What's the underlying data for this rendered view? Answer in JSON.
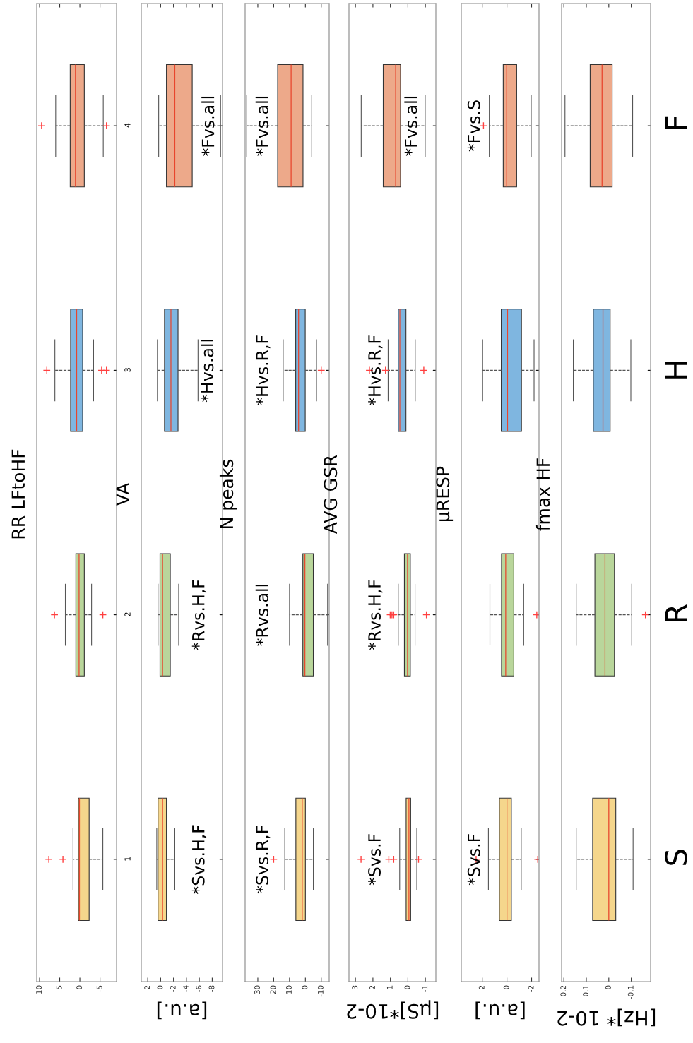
{
  "chart_data": [
    {
      "type": "box",
      "title": "RR LFtoHF",
      "orientation": "horizontal",
      "categories": [
        "4",
        "3",
        "2",
        "1"
      ],
      "colors": [
        "#eda98a",
        "#7fb6e0",
        "#b9d69b",
        "#f5d68c"
      ],
      "marker": "cross",
      "line_style": "dashed",
      "xlim": [
        10.7,
        -9.1
      ],
      "xticks": [
        10,
        5,
        0,
        -5
      ],
      "boxes": [
        {
          "low": -5.8,
          "q1": -1.1,
          "median": 1.1,
          "q3": 2.4,
          "high": 6.0,
          "outliers": [
            9.5,
            -6.6
          ]
        },
        {
          "low": -3.4,
          "q1": -0.7,
          "median": 0.8,
          "q3": 2.3,
          "high": 6.2,
          "outliers": [
            8.2,
            -5.4,
            -6.6
          ]
        },
        {
          "low": -2.9,
          "q1": -1.1,
          "median": 0.2,
          "q3": 1.0,
          "high": 3.6,
          "outliers": [
            6.3,
            -5.7
          ]
        },
        {
          "low": -5.7,
          "q1": -2.3,
          "median": 0.1,
          "q3": 0.35,
          "high": 1.7,
          "outliers": [
            7.7,
            4.2
          ]
        }
      ]
    },
    {
      "type": "box",
      "title": "VA",
      "xlabel": "[a.u.]",
      "orientation": "horizontal",
      "categories": [
        null,
        null,
        null,
        null
      ],
      "tick_labels": "x",
      "colors": [
        "#eda98a",
        "#7fb6e0",
        "#b9d69b",
        "#f5d68c"
      ],
      "marker": "cross",
      "line_style": "dashed",
      "xlim": [
        3.0,
        -9.6
      ],
      "xticks": [
        2,
        0,
        -2,
        -4,
        -6,
        -8
      ],
      "annotations": [
        "*Fvs.all",
        "*Hvs.all",
        "*Rvs.H,F",
        "*Svs.H,F"
      ],
      "boxes": [
        {
          "low": -9.3,
          "q1": -4.9,
          "median": -2.2,
          "q3": -0.9,
          "high": 0.3
        },
        {
          "low": -5.8,
          "q1": -2.7,
          "median": -1.6,
          "q3": -0.6,
          "high": 0.5
        },
        {
          "low": -2.8,
          "q1": -1.5,
          "median": -0.3,
          "q3": 0.1,
          "high": 0.4
        },
        {
          "low": -2.2,
          "q1": -0.9,
          "median": -0.3,
          "q3": 0.4,
          "high": 0.6
        }
      ]
    },
    {
      "type": "box",
      "title": "N peaks",
      "orientation": "horizontal",
      "categories": [
        null,
        null,
        null,
        null
      ],
      "tick_labels": "x",
      "colors": [
        "#eda98a",
        "#7fb6e0",
        "#b9d69b",
        "#f5d68c"
      ],
      "marker": "cross",
      "line_style": "dashed",
      "xlim": [
        38,
        -15
      ],
      "xticks": [
        30,
        20,
        10,
        0,
        -10
      ],
      "annotations": [
        "*Fvs.all",
        "*Hvs.R,F",
        "*Rvs.all",
        "*Svs.R,F"
      ],
      "boxes": [
        {
          "low": -4,
          "q1": 1.5,
          "median": 9,
          "q3": 17.5,
          "high": 37
        },
        {
          "low": -7,
          "q1": 0.1,
          "median": 4.3,
          "q3": 6.1,
          "high": 14,
          "outliers": [
            -10
          ]
        },
        {
          "low": -14,
          "q1": -5,
          "median": 0.3,
          "q3": 1.6,
          "high": 10
        },
        {
          "low": -5,
          "q1": 0,
          "median": 2,
          "q3": 6,
          "high": 13,
          "outliers": [
            20
          ]
        }
      ]
    },
    {
      "type": "box",
      "title": "AVG GSR",
      "xlabel": "[μS]*10-2",
      "orientation": "horizontal",
      "categories": [
        null,
        null,
        null,
        null
      ],
      "tick_labels": "x",
      "colors": [
        "#eda98a",
        "#7fb6e0",
        "#b9d69b",
        "#f5d68c"
      ],
      "marker": "cross",
      "line_style": "dashed",
      "xlim": [
        3.37,
        -1.6
      ],
      "xticks": [
        3,
        2,
        1,
        0,
        -1
      ],
      "annotations": [
        "*Fvs.all",
        "*Hvs.R,F",
        "*Rvs.H,F",
        "*Svs.F"
      ],
      "boxes": [
        {
          "low": -0.99,
          "q1": 0.42,
          "median": 0.7,
          "q3": 1.41,
          "high": 2.67
        },
        {
          "low": -0.42,
          "q1": 0.11,
          "median": 0.46,
          "q3": 0.55,
          "high": 1.13,
          "outliers": [
            2.2,
            1.28,
            -0.91
          ]
        },
        {
          "low": -0.41,
          "q1": -0.14,
          "median": 0.02,
          "q3": 0.2,
          "high": 0.55,
          "outliers": [
            1.01,
            0.91,
            0.81,
            -1.06
          ]
        },
        {
          "low": -0.51,
          "q1": -0.16,
          "median": -0.06,
          "q3": 0.1,
          "high": 0.47,
          "outliers": [
            2.68,
            1.09,
            0.81,
            -0.61
          ]
        }
      ]
    },
    {
      "type": "box",
      "title": "μRESP",
      "xlabel": "[a.u.]",
      "orientation": "horizontal",
      "categories": [
        null,
        null,
        null,
        null
      ],
      "tick_labels": "x",
      "colors": [
        "#eda98a",
        "#7fb6e0",
        "#b9d69b",
        "#f5d68c"
      ],
      "marker": "cross",
      "line_style": "dashed",
      "xlim": [
        3.7,
        -2.6
      ],
      "xticks": [
        2,
        0,
        -2
      ],
      "annotations": [
        "*Fvs.S",
        null,
        null,
        "*Svs.F"
      ],
      "boxes": [
        {
          "low": -1.97,
          "q1": -0.79,
          "median": 0.02,
          "q3": 0.3,
          "high": 1.43,
          "outliers": [
            1.9
          ]
        },
        {
          "low": -2.2,
          "q1": -1.18,
          "median": -0.05,
          "q3": 0.46,
          "high": 1.97
        },
        {
          "low": -1.36,
          "q1": -0.56,
          "median": 0.1,
          "q3": 0.44,
          "high": 1.38,
          "outliers": [
            -2.42
          ]
        },
        {
          "low": -1.16,
          "q1": -0.36,
          "median": 0,
          "q3": 0.61,
          "high": 1.5,
          "outliers": [
            2.5,
            -2.5
          ]
        }
      ]
    },
    {
      "type": "box",
      "title": "fmax HF",
      "xlabel": "[Hz]* 10-2",
      "orientation": "horizontal",
      "categories": [
        "F",
        "H",
        "R",
        "S"
      ],
      "colors": [
        "#eda98a",
        "#7fb6e0",
        "#b9d69b",
        "#f5d68c"
      ],
      "marker": "cross",
      "line_style": "dashed",
      "xlim": [
        0.21,
        -0.186
      ],
      "xticks": [
        0.2,
        0.1,
        0,
        -0.1
      ],
      "boxes": [
        {
          "low": -0.106,
          "q1": -0.015,
          "median": 0.03,
          "q3": 0.083,
          "high": 0.195
        },
        {
          "low": -0.098,
          "q1": -0.006,
          "median": 0.026,
          "q3": 0.069,
          "high": 0.158
        },
        {
          "low": -0.102,
          "q1": -0.025,
          "median": 0.017,
          "q3": 0.062,
          "high": 0.145,
          "outliers": [
            -0.163
          ]
        },
        {
          "low": -0.108,
          "q1": -0.031,
          "median": 0,
          "q3": 0.072,
          "high": 0.145
        }
      ]
    }
  ]
}
